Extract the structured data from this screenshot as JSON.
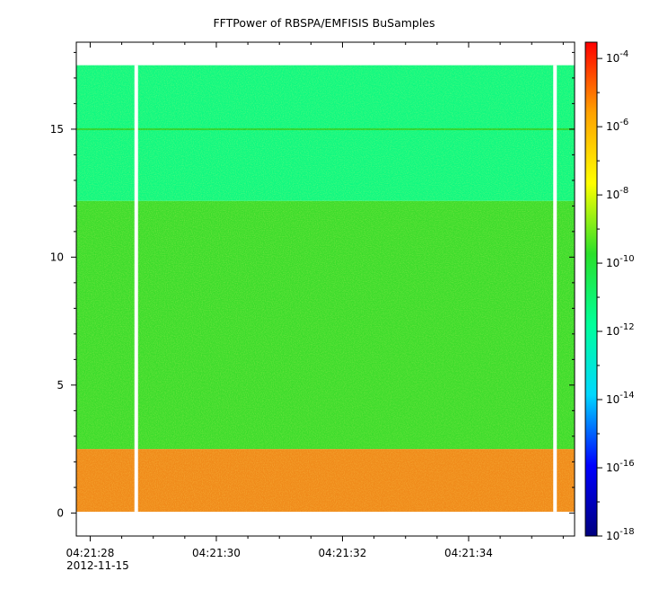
{
  "chart_data": {
    "type": "heatmap",
    "title": "FFTPower of RBSPA/EMFISIS  BuSamples",
    "xlabel": "",
    "ylabel": "",
    "x_ticks": [
      "04:21:28",
      "04:21:30",
      "04:21:32",
      "04:21:34"
    ],
    "x_ticks_seconds": [
      28,
      30,
      32,
      34
    ],
    "x_date_label": "2012-11-15",
    "xlim_seconds": [
      27.78,
      35.68
    ],
    "y_ticks": [
      0,
      5,
      10,
      15
    ],
    "ylim": [
      -0.9,
      18.4
    ],
    "y_data_extent": [
      0.05,
      17.5
    ],
    "colorbar": {
      "scale": "log",
      "range": [
        1e-18,
        0.0003
      ],
      "tick_exponents": [
        -18,
        -16,
        -14,
        -12,
        -10,
        -8,
        -6,
        -4
      ],
      "tick_base": "10",
      "colormap": [
        "#00007f",
        "#0000ff",
        "#00d7ff",
        "#00ff9a",
        "#2ae02a",
        "#ffff00",
        "#ffa200",
        "#ff0000"
      ]
    },
    "bands": [
      {
        "y_from": 0.05,
        "y_to": 2.5,
        "log_power": -8.8,
        "color": "#f08a1a"
      },
      {
        "y_from": 2.5,
        "y_to": 12.2,
        "log_power": -10.6,
        "color": "#3ddc2c"
      },
      {
        "y_from": 12.2,
        "y_to": 17.5,
        "log_power": -12.4,
        "color": "#10f880"
      }
    ],
    "line_feature": {
      "y": 15.0,
      "log_power": -11.0
    },
    "data_gaps_seconds": [
      28.73,
      35.37
    ]
  }
}
